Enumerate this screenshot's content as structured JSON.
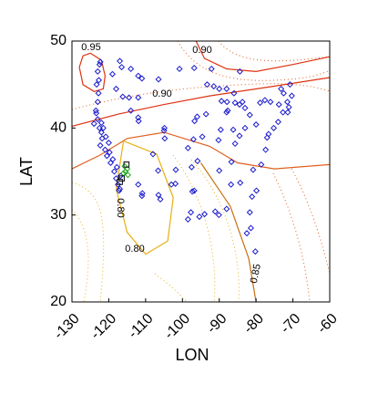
{
  "chart_data": {
    "type": "scatter",
    "x_label": "LON",
    "y_label": "LAT",
    "xlim": [
      -130,
      -60
    ],
    "ylim": [
      20,
      50
    ],
    "xticks": [
      -130,
      -120,
      -110,
      -100,
      -90,
      -80,
      -70,
      -60
    ],
    "yticks": [
      20,
      30,
      40,
      50
    ],
    "series": [
      {
        "color": "#1a1acc",
        "marker": "diamond",
        "x": [
          -123,
          -122.5,
          -123.5,
          -122,
          -121.8,
          -122.3,
          -121,
          -120.5,
          -119.5,
          -118.5,
          -118,
          -117.5,
          -117,
          -123,
          -122.8,
          -123.3,
          -122.7,
          -123,
          -122.5,
          -122.3,
          -123.4,
          -122,
          -121.5,
          -120.8,
          -120,
          -119.8,
          -118.9,
          -117.8,
          -116.8,
          -124,
          -117.2,
          -117,
          -116.5,
          -119,
          -114,
          -112,
          -111,
          -106.5,
          -118,
          -114.5,
          -116.2,
          -112,
          -111.9,
          -112,
          -114,
          -112,
          -111,
          -110.9,
          -106.6,
          -106,
          -105,
          -104.8,
          -104.9,
          -108,
          -106.5,
          -103,
          -101.9,
          -101.8,
          -98.5,
          -97.7,
          -96.8,
          -97.3,
          -95.4,
          -94,
          -97.5,
          -95.9,
          -94.6,
          -96,
          -97,
          -98.5,
          -100.8,
          -96.8,
          -96.7,
          -93.6,
          -93.3,
          -92.1,
          -90.2,
          -89.6,
          -88,
          -87.7,
          -87.9,
          -89.4,
          -90,
          -91.5,
          -88,
          -86,
          -85.7,
          -84.5,
          -83,
          -83.7,
          -84.4,
          -86.2,
          -85.7,
          -84.5,
          -83,
          -81.7,
          -80,
          -84.3,
          -86.8,
          -90,
          -86.7,
          -90.1,
          -91.1,
          -88,
          -82.5,
          -81.4,
          -80.2,
          -81.7,
          -80.8,
          -78.6,
          -77.4,
          -76.6,
          -77,
          -75.2,
          -74,
          -73.8,
          -76.1,
          -77.6,
          -78.9,
          -72.7,
          -71.1,
          -71.4,
          -70.3,
          -73.2,
          -71.5,
          -72.5,
          -70.8,
          -79.9,
          -81.1
        ],
        "y": [
          41,
          40,
          42,
          39.5,
          38.8,
          38,
          37.5,
          36.8,
          36,
          35,
          34.2,
          33.5,
          33,
          43,
          44,
          45,
          45.5,
          46.5,
          47.3,
          47.6,
          41.7,
          40.6,
          40,
          39,
          38.3,
          37.2,
          36.4,
          35.5,
          34.5,
          40.5,
          32.8,
          47.7,
          47,
          46.2,
          46.8,
          46,
          45.7,
          45.6,
          44.5,
          43.5,
          43.6,
          43.5,
          40.8,
          41.2,
          42,
          33.5,
          32.2,
          32.5,
          35.1,
          31.8,
          39.7,
          38.8,
          40,
          37,
          32.3,
          33.5,
          33.6,
          35.2,
          29.5,
          30.3,
          32.8,
          32.7,
          29.8,
          30.1,
          35.5,
          36.2,
          39,
          41.3,
          38.7,
          37.7,
          46.8,
          46.9,
          40.8,
          41.6,
          45,
          46.8,
          38.6,
          39.8,
          41.8,
          42,
          43,
          43.1,
          44.5,
          44.8,
          44.5,
          44,
          42.9,
          42.7,
          42.3,
          43,
          46.5,
          39.8,
          38.2,
          39.1,
          40,
          41.5,
          40.4,
          33.7,
          33.5,
          35.1,
          36.1,
          30,
          30.4,
          30.7,
          27.9,
          28.5,
          25.8,
          30.3,
          35.2,
          35.8,
          37.5,
          39.3,
          38.9,
          40,
          40.7,
          42.7,
          43,
          43.2,
          42.9,
          41.8,
          42.4,
          41.8,
          43.7,
          44.5,
          43,
          44,
          45,
          32.8,
          32.1
        ]
      },
      {
        "color": "#22aa22",
        "marker": "diamond",
        "x": [
          -115.5,
          -116,
          -115,
          -114.8,
          -115.7
        ],
        "y": [
          35,
          34.8,
          35.3,
          34.6,
          35.6
        ]
      },
      {
        "color": "#000000",
        "marker": "square",
        "x": [
          -116.5,
          -117,
          -115.2
        ],
        "y": [
          34.2,
          33.8,
          35.8
        ]
      }
    ],
    "contours": [
      {
        "labels": [
          "0.95"
        ],
        "color": "#dd3311",
        "x": [
          -125,
          -122,
          -121,
          -121.5,
          -124,
          -127,
          -128,
          -127,
          -125
        ],
        "y": [
          48.6,
          47.8,
          46,
          44.5,
          44.2,
          45,
          47,
          48.3,
          48.6
        ]
      },
      {
        "labels": [
          "0.90"
        ],
        "color": "#dd3311",
        "x": [
          -96.3,
          -94,
          -88,
          -80,
          -70,
          -60
        ],
        "y": [
          50,
          48,
          46.8,
          46.5,
          47.3,
          48.2
        ]
      },
      {
        "labels": [
          "0.90"
        ],
        "color": "#dd3311",
        "x": [
          -130,
          -117.4,
          -105,
          -92.6,
          -75.3,
          -60
        ],
        "y": [
          40.2,
          41.6,
          42.7,
          43.7,
          44.8,
          45.8
        ]
      },
      {
        "color": "#e06020",
        "x": [
          -130,
          -122.3,
          -115,
          -105,
          -92.6,
          -85,
          -75,
          -60
        ],
        "y": [
          35.3,
          36.9,
          38.8,
          39.5,
          37.9,
          36,
          35.3,
          35.8
        ]
      },
      {
        "labels": [
          "0.85"
        ],
        "color": "#c87010",
        "x": [
          -95,
          -87,
          -82,
          -80
        ],
        "y": [
          36,
          31,
          25,
          20
        ]
      },
      {
        "labels": [
          "0.80",
          "0.80"
        ],
        "color": "#e8b010",
        "x": [
          -116,
          -107,
          -102.5,
          -104,
          -110,
          -115,
          -118,
          -116
        ],
        "y": [
          38.5,
          37,
          32,
          27,
          25.5,
          28,
          33,
          38.5
        ]
      }
    ]
  }
}
